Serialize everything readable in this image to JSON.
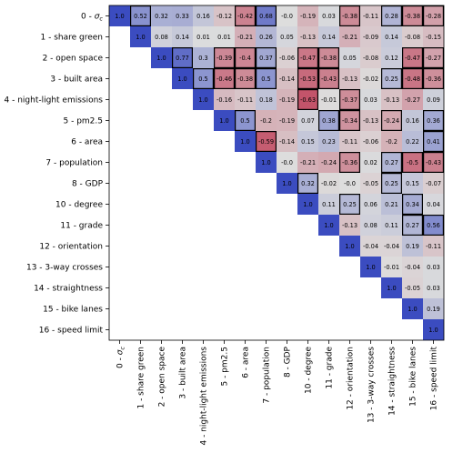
{
  "chart_data": {
    "type": "heatmap",
    "labels": [
      "0 - σ_c",
      "1 - share green",
      "2 - open space",
      "3 - built area",
      "4 - night-light emissions",
      "5 - pm2.5",
      "6 - area",
      "7 - population",
      "8 - GDP",
      "10 - degree",
      "11 - grade",
      "12 - orientation",
      "13 - 3-way crosses",
      "14 - straightness",
      "15 - bike lanes",
      "16 - speed limit"
    ],
    "matrix": [
      [
        "1.0",
        "0.52",
        "0.32",
        "0.33",
        "0.16",
        "-0.12",
        "-0.42",
        "0.68",
        "-0.0",
        "-0.19",
        "0.03",
        "-0.38",
        "-0.11",
        "0.28",
        "-0.38",
        "-0.28"
      ],
      [
        null,
        "1.0",
        "0.08",
        "0.14",
        "0.01",
        "0.01",
        "-0.21",
        "0.26",
        "0.05",
        "-0.13",
        "0.14",
        "-0.21",
        "-0.09",
        "0.14",
        "-0.08",
        "-0.15"
      ],
      [
        null,
        null,
        "1.0",
        "0.77",
        "0.3",
        "-0.39",
        "-0.4",
        "0.37",
        "-0.06",
        "-0.47",
        "-0.38",
        "0.05",
        "-0.08",
        "0.12",
        "-0.47",
        "-0.27"
      ],
      [
        null,
        null,
        null,
        "1.0",
        "0.5",
        "-0.46",
        "-0.38",
        "0.5",
        "-0.14",
        "-0.53",
        "-0.43",
        "-0.13",
        "-0.02",
        "0.25",
        "-0.48",
        "-0.36"
      ],
      [
        null,
        null,
        null,
        null,
        "1.0",
        "-0.16",
        "-0.11",
        "0.18",
        "-0.19",
        "-0.63",
        "-0.01",
        "-0.37",
        "0.03",
        "-0.13",
        "-0.27",
        "0.09"
      ],
      [
        null,
        null,
        null,
        null,
        null,
        "1.0",
        "0.5",
        "-0.2",
        "-0.19",
        "0.07",
        "0.38",
        "-0.34",
        "-0.13",
        "-0.24",
        "0.16",
        "0.36"
      ],
      [
        null,
        null,
        null,
        null,
        null,
        null,
        "1.0",
        "-0.59",
        "-0.14",
        "0.15",
        "0.23",
        "-0.11",
        "-0.06",
        "-0.2",
        "0.22",
        "0.41"
      ],
      [
        null,
        null,
        null,
        null,
        null,
        null,
        null,
        "1.0",
        "-0.0",
        "-0.21",
        "-0.24",
        "-0.36",
        "0.02",
        "0.27",
        "-0.5",
        "-0.43"
      ],
      [
        null,
        null,
        null,
        null,
        null,
        null,
        null,
        null,
        "1.0",
        "0.32",
        "-0.02",
        "-0.0",
        "-0.05",
        "0.25",
        "0.15",
        "-0.07"
      ],
      [
        null,
        null,
        null,
        null,
        null,
        null,
        null,
        null,
        null,
        "1.0",
        "0.11",
        "0.25",
        "0.06",
        "0.21",
        "0.34",
        "0.04"
      ],
      [
        null,
        null,
        null,
        null,
        null,
        null,
        null,
        null,
        null,
        null,
        "1.0",
        "-0.13",
        "0.08",
        "0.11",
        "0.27",
        "0.56"
      ],
      [
        null,
        null,
        null,
        null,
        null,
        null,
        null,
        null,
        null,
        null,
        null,
        "1.0",
        "-0.04",
        "-0.04",
        "0.19",
        "-0.11"
      ],
      [
        null,
        null,
        null,
        null,
        null,
        null,
        null,
        null,
        null,
        null,
        null,
        null,
        "1.0",
        "-0.01",
        "-0.04",
        "0.03"
      ],
      [
        null,
        null,
        null,
        null,
        null,
        null,
        null,
        null,
        null,
        null,
        null,
        null,
        null,
        "1.0",
        "-0.05",
        "0.03"
      ],
      [
        null,
        null,
        null,
        null,
        null,
        null,
        null,
        null,
        null,
        null,
        null,
        null,
        null,
        null,
        "1.0",
        "0.19"
      ],
      [
        null,
        null,
        null,
        null,
        null,
        null,
        null,
        null,
        null,
        null,
        null,
        null,
        null,
        null,
        null,
        "1.0"
      ]
    ],
    "highlighted": [
      [
        0,
        1
      ],
      [
        0,
        6
      ],
      [
        0,
        7
      ],
      [
        0,
        11
      ],
      [
        0,
        13
      ],
      [
        0,
        14
      ],
      [
        0,
        15
      ],
      [
        2,
        3
      ],
      [
        2,
        5
      ],
      [
        2,
        6
      ],
      [
        2,
        7
      ],
      [
        2,
        9
      ],
      [
        2,
        10
      ],
      [
        2,
        14
      ],
      [
        2,
        15
      ],
      [
        3,
        4
      ],
      [
        3,
        5
      ],
      [
        3,
        6
      ],
      [
        3,
        7
      ],
      [
        3,
        9
      ],
      [
        3,
        10
      ],
      [
        3,
        13
      ],
      [
        3,
        14
      ],
      [
        3,
        15
      ],
      [
        4,
        9
      ],
      [
        4,
        11
      ],
      [
        5,
        6
      ],
      [
        5,
        10
      ],
      [
        5,
        11
      ],
      [
        5,
        13
      ],
      [
        5,
        15
      ],
      [
        6,
        7
      ],
      [
        6,
        15
      ],
      [
        7,
        11
      ],
      [
        7,
        13
      ],
      [
        7,
        14
      ],
      [
        7,
        15
      ],
      [
        8,
        9
      ],
      [
        8,
        13
      ],
      [
        9,
        11
      ],
      [
        9,
        14
      ],
      [
        10,
        14
      ],
      [
        10,
        15
      ]
    ],
    "color_scale": "diverging blue (-1) to red (+1)",
    "colors": {
      "negative": "#3b4cc0",
      "neutral": "#dddddd",
      "positive": "#b40426",
      "highlight_border": "#000000"
    }
  }
}
